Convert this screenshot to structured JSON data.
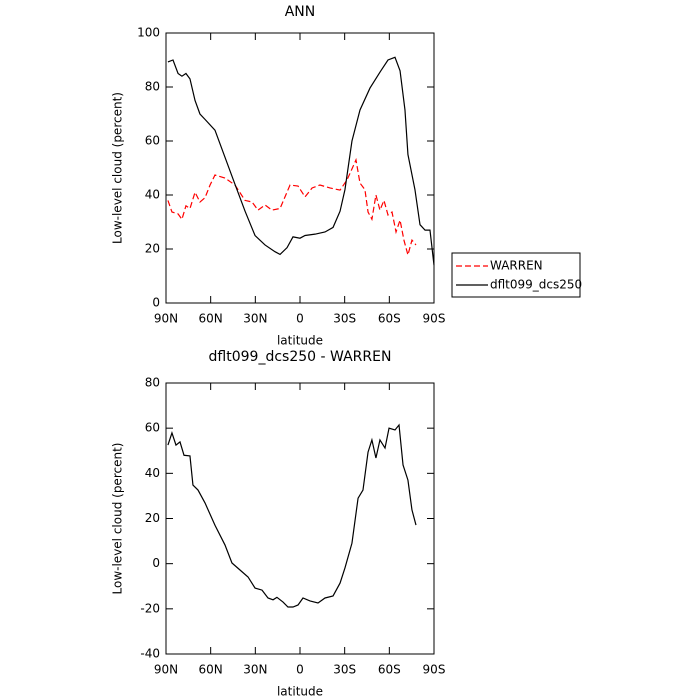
{
  "chart_data": [
    {
      "type": "line",
      "title": "ANN",
      "xlabel": "latitude",
      "ylabel": "Low-level cloud (percent)",
      "xlim": [
        90,
        -90
      ],
      "xticks": [
        {
          "value": 90,
          "label": "90N"
        },
        {
          "value": 60,
          "label": "60N"
        },
        {
          "value": 30,
          "label": "30N"
        },
        0,
        {
          "value": -30,
          "label": "30S"
        },
        {
          "value": -60,
          "label": "60S"
        },
        {
          "value": -90,
          "label": "90S"
        }
      ],
      "ylim": [
        0,
        100
      ],
      "yticks": [
        0,
        20,
        40,
        60,
        80,
        100
      ],
      "legend": "right",
      "series": [
        {
          "name": "WARREN",
          "color": "#ff0000",
          "line_style": "dashed",
          "x": [
            88.7,
            86.0,
            81.9,
            79.3,
            76.6,
            73.9,
            70.5,
            67.2,
            63.8,
            60.4,
            57.1,
            50.4,
            43.7,
            36.9,
            32.2,
            28.2,
            23.5,
            18.8,
            13.4,
            6.7,
            1.3,
            -3.4,
            -8.1,
            -13.4,
            -20.1,
            -26.9,
            -31.6,
            -37.6,
            -40.3,
            -43.6,
            -45.7,
            -48.3,
            -51.0,
            -53.7,
            -56.4,
            -59.1,
            -61.8,
            -64.5,
            -67.2,
            -69.8,
            -72.5,
            -75.2,
            -77.9
          ],
          "values": [
            38,
            33.7,
            33,
            31,
            36,
            35,
            41,
            37.4,
            39,
            43.7,
            47.4,
            46.3,
            43.7,
            38,
            37.4,
            34.4,
            36.3,
            34.4,
            35,
            43.7,
            43.3,
            39.3,
            42.6,
            43.7,
            42.6,
            41.8,
            45.6,
            53,
            44.4,
            42,
            33.7,
            31,
            40,
            34.4,
            38,
            32.6,
            33.7,
            26.3,
            30.7,
            23.3,
            17.8,
            23.3,
            21.5
          ]
        },
        {
          "name": "dflt099_dcs250",
          "color": "#000000",
          "line_style": "solid",
          "x": [
            88.7,
            85.3,
            81.9,
            79.3,
            76.6,
            73.9,
            70.5,
            67.2,
            63.8,
            57.1,
            50.4,
            43.7,
            36.9,
            30.2,
            23.5,
            16.8,
            13.4,
            8.7,
            4.7,
            0,
            -3.4,
            -10.1,
            -16.8,
            -22.2,
            -26.9,
            -30.2,
            -34.9,
            -40.3,
            -47.0,
            -53.7,
            -59.1,
            -63.8,
            -67.2,
            -70.5,
            -72.5,
            -77.2,
            -80.6,
            -84.0,
            -87.3,
            -90
          ],
          "values": [
            89.3,
            90,
            85,
            84,
            85,
            83,
            75,
            70,
            68,
            64,
            54,
            44,
            34,
            25,
            21.5,
            19,
            18,
            20.5,
            24.5,
            24,
            25,
            25.5,
            26.3,
            28,
            34,
            42,
            60,
            71.5,
            79.6,
            85.5,
            90,
            91,
            86,
            71.5,
            55,
            42,
            29,
            27,
            27,
            14
          ]
        }
      ]
    },
    {
      "type": "line",
      "title": "dflt099_dcs250 - WARREN",
      "xlabel": "latitude",
      "ylabel": "Low-level cloud (percent)",
      "xlim": [
        90,
        -90
      ],
      "xticks": [
        {
          "value": 90,
          "label": "90N"
        },
        {
          "value": 60,
          "label": "60N"
        },
        {
          "value": 30,
          "label": "30N"
        },
        0,
        {
          "value": -30,
          "label": "30S"
        },
        {
          "value": -60,
          "label": "60S"
        },
        {
          "value": -90,
          "label": "90S"
        }
      ],
      "ylim": [
        -40,
        80
      ],
      "yticks": [
        -40,
        -20,
        0,
        20,
        40,
        60,
        80
      ],
      "series": [
        {
          "color": "#000000",
          "line_style": "solid",
          "x": [
            88.7,
            86.0,
            83.3,
            80.6,
            77.9,
            73.9,
            71.9,
            68.5,
            63.8,
            57.1,
            50.4,
            45.7,
            40.3,
            34.9,
            30.2,
            25.5,
            21.5,
            18.1,
            15.5,
            11.4,
            8.1,
            4.7,
            1.3,
            -2.0,
            -6.7,
            -12.1,
            -16.8,
            -22.2,
            -26.9,
            -30.2,
            -34.9,
            -39.0,
            -42.3,
            -45.7,
            -48.3,
            -51.0,
            -53.7,
            -57.1,
            -59.8,
            -63.8,
            -66.5,
            -69.2,
            -72.5,
            -75.2,
            -77.9
          ],
          "values": [
            52.5,
            57.9,
            52.5,
            53.9,
            48,
            47.7,
            34.8,
            32.6,
            26.9,
            17,
            8.3,
            0.3,
            -2.8,
            -5.9,
            -10.8,
            -11.7,
            -15.2,
            -16,
            -14.9,
            -17,
            -19.2,
            -19.2,
            -18.3,
            -15.2,
            -16.5,
            -17.4,
            -15.2,
            -14.3,
            -8.6,
            -1.9,
            9.1,
            29,
            32.6,
            49.4,
            54.8,
            46.8,
            54.8,
            51.2,
            60,
            59.2,
            61.4,
            43.7,
            37,
            23.8,
            17.1
          ]
        }
      ]
    }
  ]
}
